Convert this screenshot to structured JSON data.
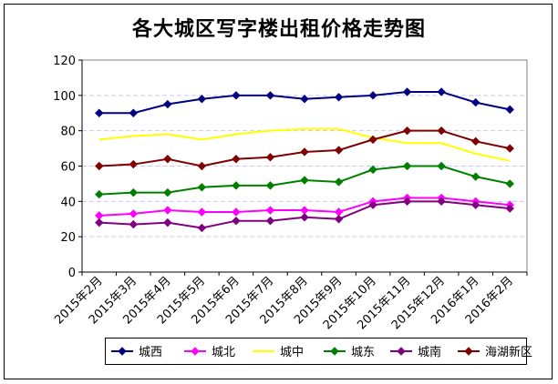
{
  "title": "各大城区写字楼出租价格走势图",
  "chart_data": {
    "type": "line",
    "title": "各大城区写字楼出租价格走势图",
    "categories": [
      "2015年2月",
      "2015年3月",
      "2015年4月",
      "2015年5月",
      "2015年6月",
      "2015年7月",
      "2015年8月",
      "2015年9月",
      "2015年10月",
      "2015年11月",
      "2015年12月",
      "2016年1月",
      "2016年2月"
    ],
    "ylim": [
      0,
      120
    ],
    "yticks": [
      "0",
      "20",
      "40",
      "60",
      "80",
      "100",
      "120"
    ],
    "grid": true,
    "legend_position": "bottom",
    "series": [
      {
        "name": "城西",
        "color": "#000080",
        "marker": "diamond",
        "values": [
          90,
          90,
          95,
          98,
          100,
          100,
          98,
          99,
          100,
          102,
          102,
          96,
          92
        ]
      },
      {
        "name": "城北",
        "color": "#ff00ff",
        "marker": "diamond",
        "values": [
          32,
          33,
          35,
          34,
          34,
          35,
          35,
          34,
          40,
          42,
          42,
          40,
          38
        ]
      },
      {
        "name": "城中",
        "color": "#ffff00",
        "marker": "none",
        "values": [
          75,
          77,
          78,
          75,
          78,
          80,
          81,
          81,
          76,
          73,
          73,
          67,
          63
        ]
      },
      {
        "name": "城东",
        "color": "#008000",
        "marker": "diamond",
        "values": [
          44,
          45,
          45,
          48,
          49,
          49,
          52,
          51,
          58,
          60,
          60,
          54,
          50
        ]
      },
      {
        "name": "城南",
        "color": "#800080",
        "marker": "diamond",
        "values": [
          28,
          27,
          28,
          25,
          29,
          29,
          31,
          30,
          38,
          40,
          40,
          38,
          36
        ]
      },
      {
        "name": "海湖新区",
        "color": "#800000",
        "marker": "diamond",
        "values": [
          60,
          61,
          64,
          60,
          64,
          65,
          68,
          69,
          75,
          80,
          80,
          74,
          70
        ]
      }
    ]
  }
}
